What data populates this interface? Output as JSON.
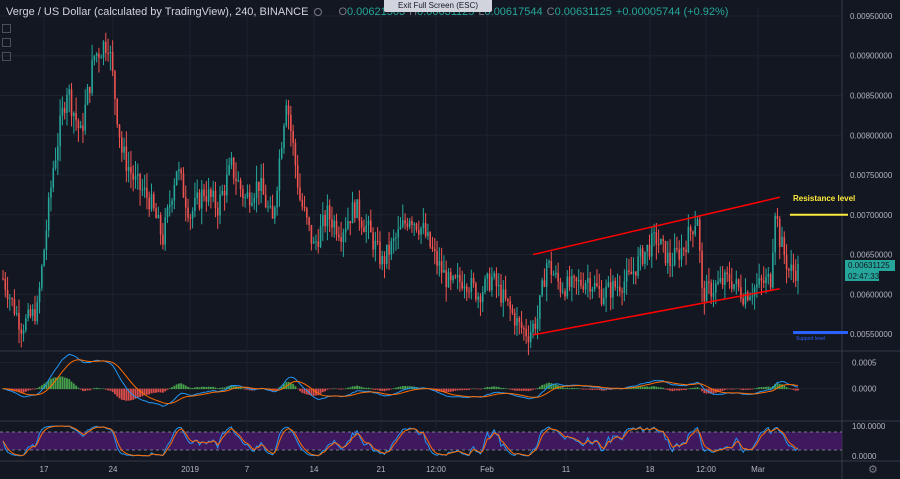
{
  "header": {
    "symbol": "Verge / US Dollar (calculated by TradingView), 240, BINANCE",
    "ohlc": {
      "o_label": "O",
      "o": "0.00621503",
      "h_label": "H",
      "h": "0.00631125",
      "l_label": "L",
      "l": "0.00617544",
      "c_label": "C",
      "c": "0.00631125",
      "change": "+0.00005744 (+0.92%)"
    },
    "exit_fullscreen": "Exit Full Screen (ESC)"
  },
  "colors": {
    "background": "#131722",
    "up": "#26a69a",
    "down": "#ef5350",
    "channel": "#ff0000",
    "resistance": "#ffeb3b",
    "support": "#2962ff",
    "macd": "#2196f3",
    "signal": "#ff6d00",
    "stoch_k": "#2196f3",
    "stoch_d": "#ff6d00",
    "stoch_band": "#4a1a6e"
  },
  "chart_data": [
    {
      "type": "candlestick",
      "ylim": [
        0.0053,
        0.0096
      ],
      "y_ticks": [
        "0.00950000",
        "0.00900000",
        "0.00850000",
        "0.00800000",
        "0.00750000",
        "0.00700000",
        "0.00650000",
        "0.00600000",
        "0.00550000"
      ],
      "x_ticks": [
        "17",
        "24",
        "2019",
        "7",
        "14",
        "21",
        "12:00",
        "Feb",
        "11",
        "18",
        "12:00",
        "Mar"
      ],
      "anchors": [
        [
          0,
          0.0062
        ],
        [
          8,
          0.0056
        ],
        [
          15,
          0.0058
        ],
        [
          22,
          0.0076
        ],
        [
          28,
          0.0086
        ],
        [
          34,
          0.008
        ],
        [
          40,
          0.009
        ],
        [
          46,
          0.0092
        ],
        [
          52,
          0.0078
        ],
        [
          58,
          0.0074
        ],
        [
          64,
          0.0072
        ],
        [
          70,
          0.0067
        ],
        [
          76,
          0.0076
        ],
        [
          82,
          0.007
        ],
        [
          88,
          0.0073
        ],
        [
          94,
          0.0071
        ],
        [
          100,
          0.0076
        ],
        [
          106,
          0.0072
        ],
        [
          112,
          0.0074
        ],
        [
          118,
          0.0069
        ],
        [
          124,
          0.0085
        ],
        [
          130,
          0.0072
        ],
        [
          136,
          0.0066
        ],
        [
          142,
          0.007
        ],
        [
          148,
          0.0068
        ],
        [
          154,
          0.0071
        ],
        [
          160,
          0.0068
        ],
        [
          166,
          0.0064
        ],
        [
          172,
          0.0067
        ],
        [
          178,
          0.007
        ],
        [
          184,
          0.0068
        ],
        [
          190,
          0.0064
        ],
        [
          196,
          0.0061
        ],
        [
          202,
          0.0062
        ],
        [
          208,
          0.006
        ],
        [
          214,
          0.0062
        ],
        [
          220,
          0.0059
        ],
        [
          226,
          0.0056
        ],
        [
          230,
          0.0055
        ],
        [
          234,
          0.0057
        ],
        [
          238,
          0.0064
        ],
        [
          244,
          0.0061
        ],
        [
          250,
          0.0061
        ],
        [
          256,
          0.0062
        ],
        [
          262,
          0.006
        ],
        [
          268,
          0.0061
        ],
        [
          274,
          0.0062
        ],
        [
          280,
          0.0065
        ],
        [
          286,
          0.0067
        ],
        [
          292,
          0.0064
        ],
        [
          298,
          0.0066
        ],
        [
          304,
          0.007
        ],
        [
          306,
          0.006
        ],
        [
          312,
          0.0061
        ],
        [
          318,
          0.0062
        ],
        [
          324,
          0.006
        ],
        [
          330,
          0.0061
        ],
        [
          336,
          0.0062
        ],
        [
          338,
          0.0071
        ],
        [
          340,
          0.0067
        ],
        [
          344,
          0.0063
        ],
        [
          348,
          0.0063
        ]
      ],
      "channel_upper": [
        [
          0.0065,
          0.00648
        ],
        [
          0.00722,
          0.00722
        ]
      ],
      "channel_lower": [
        [
          0.00549,
          0.00547
        ],
        [
          0.00607,
          0.00607
        ]
      ],
      "resistance": {
        "label": "Resistance level",
        "value": 0.007
      },
      "support": {
        "label": "Support level",
        "value": 0.00552
      },
      "current_price": "0.00631125",
      "countdown": "02:47:33"
    },
    {
      "type": "line",
      "name": "macd",
      "ylim": [
        -0.0006,
        0.0007
      ],
      "y_ticks": [
        "0.0005",
        "0.0000"
      ]
    },
    {
      "type": "line",
      "name": "stochastic",
      "ylim": [
        0,
        100
      ],
      "y_ticks": [
        "100.0000",
        "0.0000"
      ]
    }
  ]
}
